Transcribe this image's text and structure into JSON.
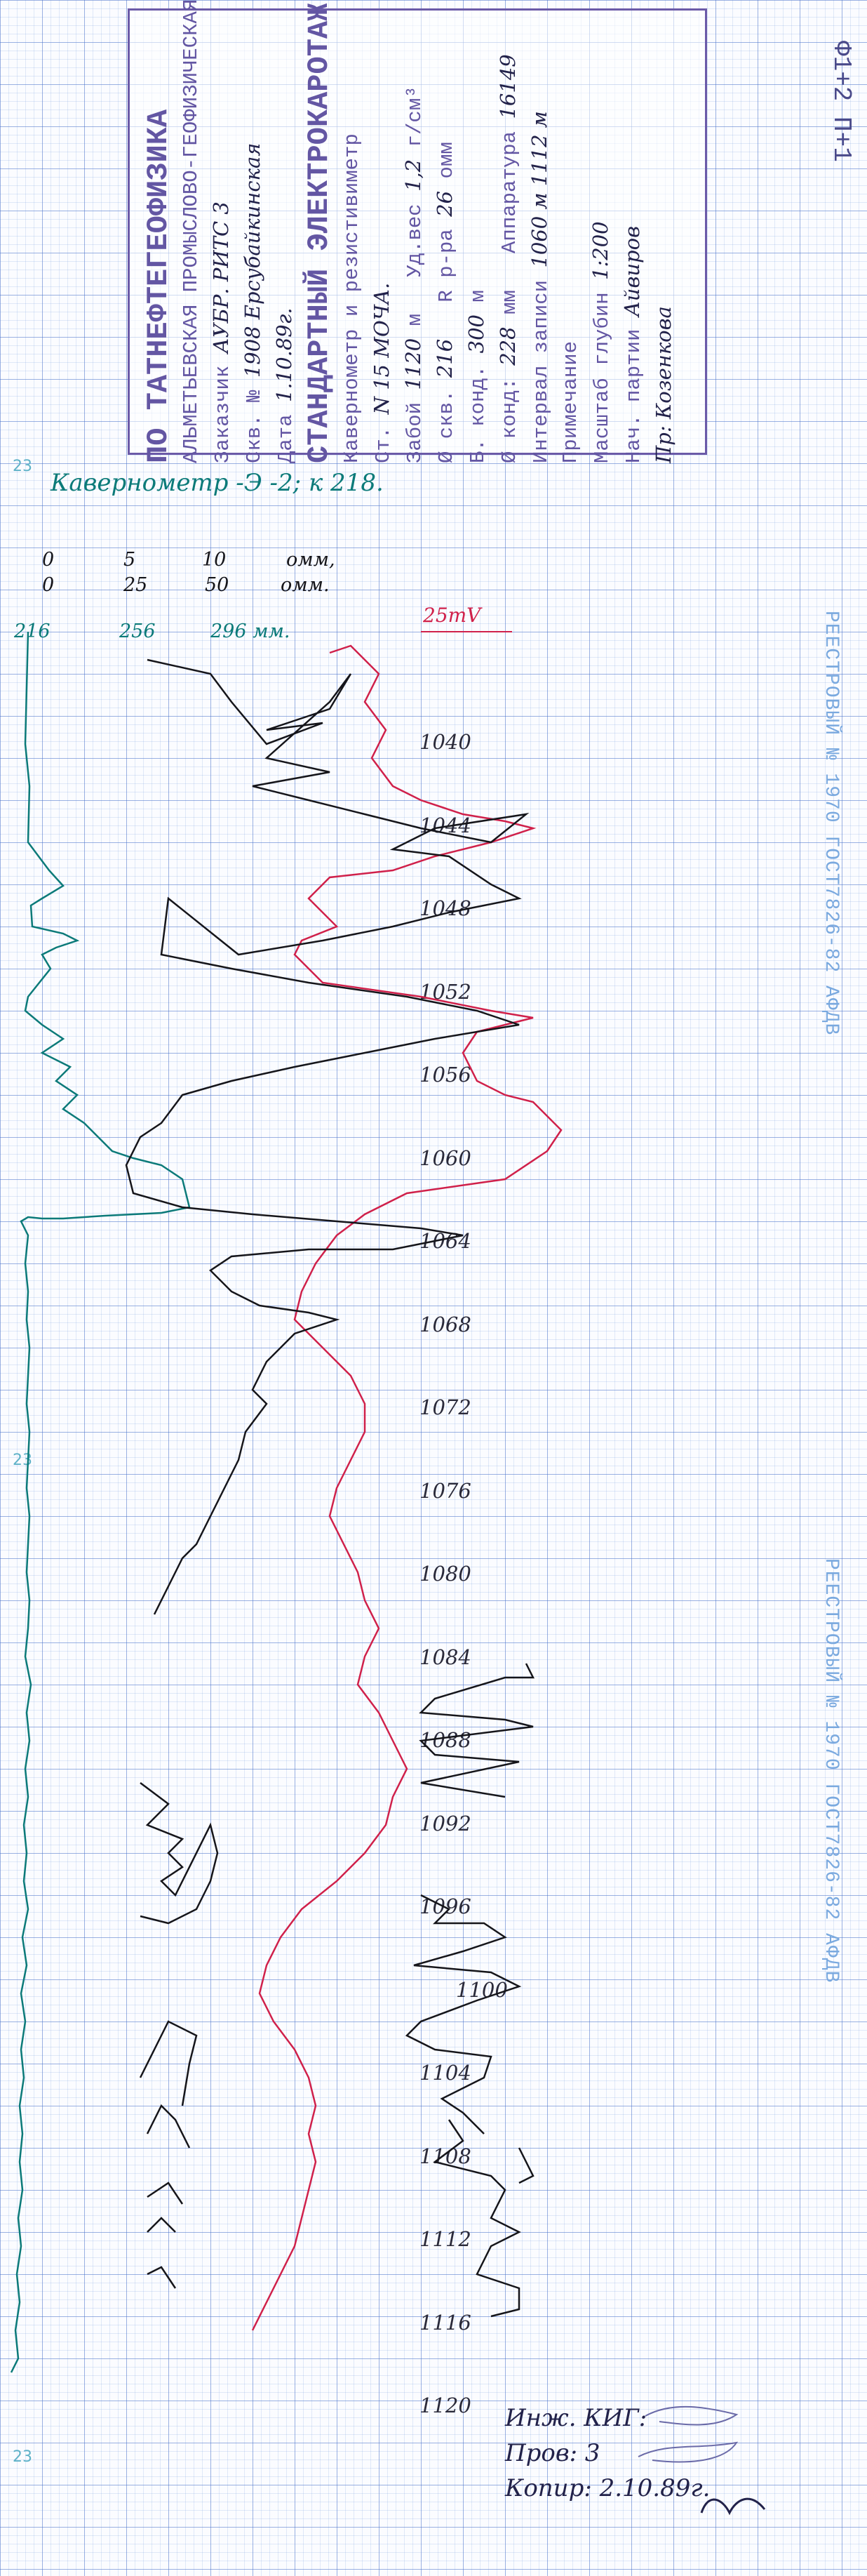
{
  "stamp": {
    "org": "ПО ТАТНЕФТЕГЕОФИЗИКА",
    "expedition": "АЛЬМЕТЬЕВСКАЯ ПРОМЫСЛОВО-ГЕОФИЗИЧЕСКАЯ ЭКСП.",
    "customer_label": "Заказчик",
    "customer_value": "АУБР. РИТС 3",
    "area_label": "Скв. №",
    "area_value": "1908 Ерсубайкинская",
    "date_label": "Дата",
    "date_value": "1.10.89г.",
    "method": "СТАНДАРТНЫЙ ЭЛЕКТРОКАРОТАЖ",
    "method2": "Кавернометр и резистивиметр",
    "station_label": "Ст.",
    "station_value": "N 15 МОЧА.",
    "face_label": "Забой",
    "face_value": "1120",
    "face_unit": "м",
    "density_label": "Уд.вес",
    "density_value": "1,2",
    "density_unit": "г/см³",
    "casing_label": "Ø скв.",
    "casing_value": "216",
    "resistivity_label": "R р-ра",
    "resistivity_value": "26",
    "resistivity_unit": "омм",
    "shoe_label": "Б. конд.",
    "shoe_value": "300",
    "shoe_unit": "м",
    "diam_label": "Ø конд",
    "diam_value": "228",
    "diam_unit": "мм",
    "level_label": "Аппаратура",
    "level_value": "16149",
    "interval_label": "Интервал записи",
    "interval_value": "1060 м 1112 м",
    "note_label": "Примечание",
    "scale_label": "Масштаб глубин",
    "scale_value": "1:200",
    "operator_label": "Нач. партии",
    "operator_value": "Айвиров",
    "interpreter_value": "Пр: Козенкова"
  },
  "side_id": "Ф1+2 П+1",
  "watermark": "РЕЕСТРОВЫЙ № 1970 ГОСТ7826-82 АФДВ",
  "caliper_title": "Кавернометр -Э -2; к 218.",
  "scale1": [
    "0",
    "5",
    "10",
    "омм,"
  ],
  "scale2": [
    "0",
    "25",
    "50",
    "омм."
  ],
  "scale3": [
    "216",
    "256",
    "296 мм."
  ],
  "mv_label": "25mV",
  "depths": [
    "1040",
    "1044",
    "1048",
    "1052",
    "1056",
    "1060",
    "1064",
    "1068",
    "1072",
    "1076",
    "1080",
    "1084",
    "1088",
    "1092",
    "1096",
    "1100",
    "1104",
    "1108",
    "1112",
    "1116",
    "1120"
  ],
  "margin_marks": [
    "23",
    "23",
    "23"
  ],
  "signatures": {
    "engineer": "Инж. КИГ:",
    "checked": "Пров: 3",
    "copied": "Копир: 2.10.89г."
  },
  "colors": {
    "grid": "#4f7fd0",
    "stamp": "#6356a3",
    "caliper": "#0b7a79",
    "sp": "#d0204a",
    "resistivity": "#15151a"
  }
}
